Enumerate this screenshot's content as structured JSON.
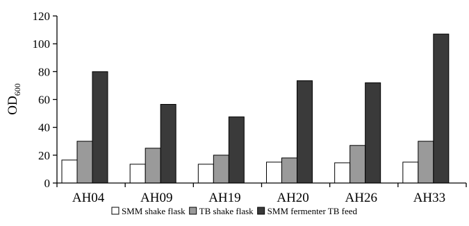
{
  "chart_data": {
    "type": "bar",
    "categories": [
      "AH04",
      "AH09",
      "AH19",
      "AH20",
      "AH26",
      "AH33"
    ],
    "series": [
      {
        "name": "SMM shake flask",
        "values": [
          16.5,
          13.5,
          13.5,
          15,
          14.5,
          15
        ],
        "color": "#ffffff"
      },
      {
        "name": "TB shake flask",
        "values": [
          30,
          25,
          20,
          18,
          27,
          30
        ],
        "color": "#9a9a9a"
      },
      {
        "name": "SMM fermenter TB feed",
        "values": [
          80,
          56.5,
          47.5,
          73.5,
          72,
          107
        ],
        "color": "#3a3a3a"
      }
    ],
    "ylabel": {
      "main": "OD",
      "sub": "600"
    },
    "yticks": [
      0,
      20,
      40,
      60,
      80,
      100,
      120
    ],
    "ylim": [
      0,
      120
    ],
    "grid": false,
    "legend": "bottom-center"
  }
}
